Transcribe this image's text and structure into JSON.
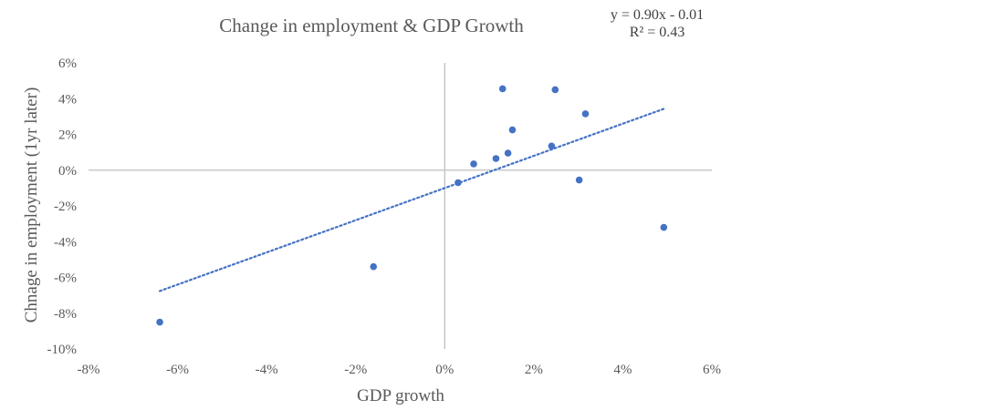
{
  "chart_data": {
    "type": "scatter",
    "title": "Change in employment & GDP Growth",
    "xlabel": "GDP growth",
    "ylabel": "Chnage in employment  (1yr later)",
    "xlim": [
      -0.08,
      0.06
    ],
    "ylim": [
      -0.1,
      0.06
    ],
    "x_ticks": [
      -0.08,
      -0.06,
      -0.04,
      -0.02,
      0,
      0.02,
      0.04,
      0.06
    ],
    "x_tick_labels": [
      "-8%",
      "-6%",
      "-4%",
      "-2%",
      "0%",
      "2%",
      "4%",
      "6%"
    ],
    "y_ticks": [
      0.06,
      0.04,
      0.02,
      0,
      -0.02,
      -0.04,
      -0.06,
      -0.08,
      -0.1
    ],
    "y_tick_labels": [
      "6%",
      "4%",
      "2%",
      "0%",
      "-2%",
      "-4%",
      "-6%",
      "-8%",
      "-10%"
    ],
    "grid": false,
    "marker_color": "#4472C4",
    "axis_color": "#BFBFBF",
    "series": [
      {
        "x": [
          -0.064,
          -0.016,
          0.003,
          0.0065,
          0.0115,
          0.013,
          0.0142,
          0.0152,
          0.024,
          0.0248,
          0.0302,
          0.0316,
          0.0492
        ],
        "y": [
          -0.085,
          -0.054,
          -0.007,
          0.0035,
          0.0065,
          0.0455,
          0.0095,
          0.0225,
          0.0135,
          0.045,
          -0.0055,
          0.0315,
          -0.032
        ]
      }
    ],
    "trendline": {
      "style": "dotted",
      "x_range": [
        -0.064,
        0.0492
      ],
      "slope": 0.9,
      "intercept": -0.01,
      "equation_text": "y = 0.90x - 0.01",
      "r2_text": "R² = 0.43"
    }
  }
}
